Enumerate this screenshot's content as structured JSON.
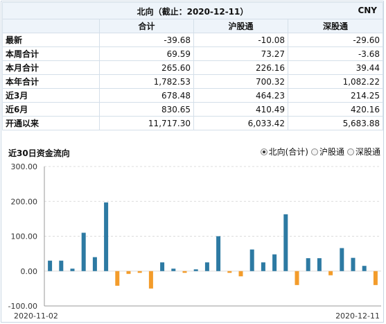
{
  "header": {
    "title": "北向（截止：2020-12-11）",
    "currency": "CNY"
  },
  "table": {
    "columns": [
      "",
      "合计",
      "沪股通",
      "深股通"
    ],
    "rows": [
      {
        "label": "最新",
        "values": [
          "-39.68",
          "-10.08",
          "-29.60"
        ]
      },
      {
        "label": "本周合计",
        "values": [
          "69.59",
          "73.27",
          "-3.68"
        ]
      },
      {
        "label": "本月合计",
        "values": [
          "265.60",
          "226.16",
          "39.44"
        ]
      },
      {
        "label": "本年合计",
        "values": [
          "1,782.53",
          "700.32",
          "1,082.22"
        ]
      },
      {
        "label": "近3月",
        "values": [
          "678.48",
          "464.23",
          "214.25"
        ]
      },
      {
        "label": "近6月",
        "values": [
          "830.65",
          "410.49",
          "420.16"
        ]
      },
      {
        "label": "开通以来",
        "values": [
          "11,717.30",
          "6,033.42",
          "5,683.88"
        ]
      }
    ]
  },
  "chart_section": {
    "title": "近30日资金流向",
    "legend": [
      {
        "label": "北向(合计)",
        "selected": true
      },
      {
        "label": "沪股通",
        "selected": false
      },
      {
        "label": "深股通",
        "selected": false
      }
    ]
  },
  "chart_data": {
    "type": "bar",
    "title": "近30日资金流向",
    "x_start_label": "2020-11-02",
    "x_end_label": "2020-12-11",
    "ylim": [
      -100,
      300
    ],
    "yticks": [
      "300.00",
      "200.00",
      "100.00",
      "0.00",
      "-100.00"
    ],
    "ytick_values": [
      300,
      200,
      100,
      0,
      -100
    ],
    "positive_color": "#2d7aa3",
    "negative_color": "#f39c2b",
    "values": [
      30,
      30,
      7,
      110,
      40,
      197,
      -42,
      -8,
      -5,
      -50,
      25,
      7,
      -5,
      5,
      25,
      100,
      -5,
      -15,
      62,
      25,
      48,
      163,
      -40,
      37,
      37,
      -12,
      66,
      38,
      15,
      -40
    ]
  }
}
